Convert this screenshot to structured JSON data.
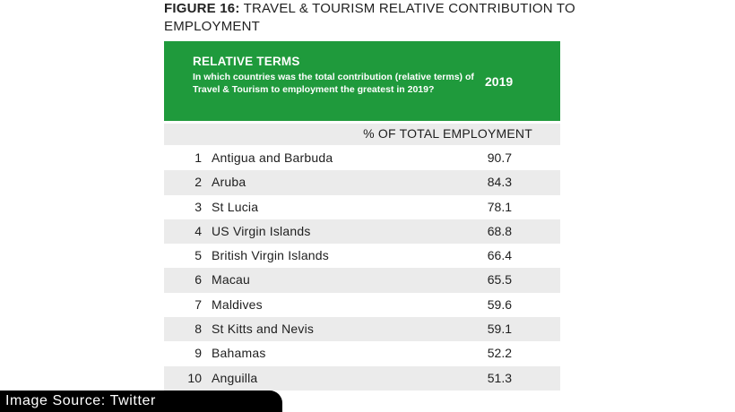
{
  "figure": {
    "number_label": "FIGURE 16:",
    "title_text": "TRAVEL & TOURISM RELATIVE CONTRIBUTION TO EMPLOYMENT"
  },
  "banner": {
    "heading": "RELATIVE TERMS",
    "question": "In which countries was the total contribution (relative terms) of Travel & Tourism to employment the greatest in 2019?",
    "year": "2019",
    "color": "#1f9a3c"
  },
  "column_header": "% OF TOTAL EMPLOYMENT",
  "source_tag": "Image Source: Twitter",
  "chart_data": {
    "type": "table",
    "columns": [
      "",
      "",
      "% OF TOTAL EMPLOYMENT"
    ],
    "rows": [
      {
        "rank": "1",
        "country": "Antigua and Barbuda",
        "value": "90.7"
      },
      {
        "rank": "2",
        "country": "Aruba",
        "value": "84.3"
      },
      {
        "rank": "3",
        "country": "St Lucia",
        "value": "78.1"
      },
      {
        "rank": "4",
        "country": "US Virgin Islands",
        "value": "68.8"
      },
      {
        "rank": "5",
        "country": "British Virgin Islands",
        "value": "66.4"
      },
      {
        "rank": "6",
        "country": "Macau",
        "value": "65.5"
      },
      {
        "rank": "7",
        "country": "Maldives",
        "value": "59.6"
      },
      {
        "rank": "8",
        "country": "St Kitts and Nevis",
        "value": "59.1"
      },
      {
        "rank": "9",
        "country": "Bahamas",
        "value": "52.2"
      },
      {
        "rank": "10",
        "country": "Anguilla",
        "value": "51.3"
      }
    ]
  }
}
